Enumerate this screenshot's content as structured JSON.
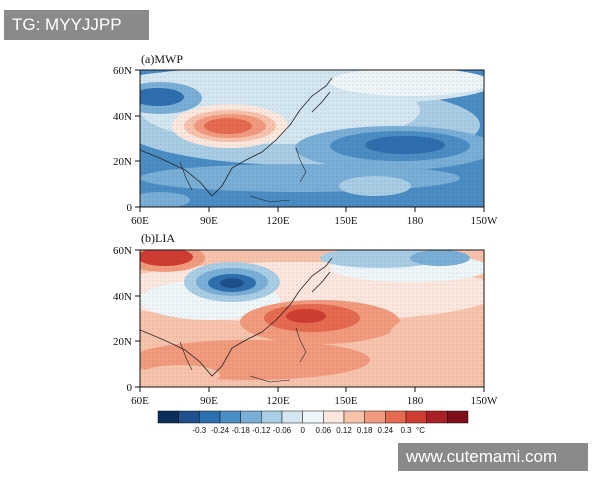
{
  "watermarks": {
    "top_left": "TG: MYYJJPP",
    "bottom_right": "www.cutemami.com"
  },
  "panels": [
    {
      "title": "(a)MWP"
    },
    {
      "title": "(b)LIA"
    }
  ],
  "axes": {
    "lat_labels": [
      "60N",
      "40N",
      "20N",
      "0"
    ],
    "lon_labels": [
      "60E",
      "90E",
      "120E",
      "150E",
      "180",
      "150W"
    ]
  },
  "colorbar": {
    "labels": [
      "-0.3",
      "-0.24",
      "-0.18",
      "-0.12",
      "-0.06",
      "0",
      "0.06",
      "0.12",
      "0.18",
      "0.24",
      "0.3"
    ],
    "unit": "°C",
    "colors": [
      "#0b2f5a",
      "#1f4f8c",
      "#2d6fae",
      "#4a8cc4",
      "#79aed6",
      "#a8cde5",
      "#d3e6f1",
      "#eff6fa",
      "#fbe7de",
      "#f7c3ad",
      "#f19a7d",
      "#e56a4f",
      "#cf3c32",
      "#ad1f26",
      "#7e0f1a"
    ]
  }
}
